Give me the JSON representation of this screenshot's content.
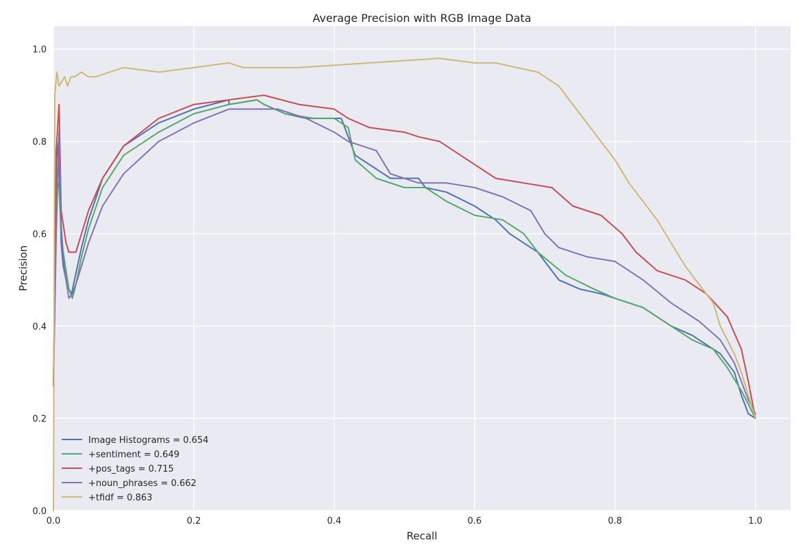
{
  "chart_data": {
    "type": "line",
    "title": "Average Precision with RGB Image Data",
    "xlabel": "Recall",
    "ylabel": "Precision",
    "xlim": [
      0.0,
      1.05
    ],
    "ylim": [
      0.0,
      1.05
    ],
    "xticks": [
      0.0,
      0.2,
      0.4,
      0.6,
      0.8,
      1.0
    ],
    "yticks": [
      0.0,
      0.2,
      0.4,
      0.6,
      0.8,
      1.0
    ],
    "xtick_labels": [
      "0.0",
      "0.2",
      "0.4",
      "0.6",
      "0.8",
      "1.0"
    ],
    "ytick_labels": [
      "0.0",
      "0.2",
      "0.4",
      "0.6",
      "0.8",
      "1.0"
    ],
    "grid": true,
    "legend_position": "bottom-left",
    "background": "#eaeaf2",
    "series": [
      {
        "name": "Image Histograms = 0.654",
        "color": "#4c72b0",
        "x": [
          0.0,
          0.005,
          0.008,
          0.011,
          0.014,
          0.018,
          0.022,
          0.026,
          0.03,
          0.04,
          0.05,
          0.07,
          0.1,
          0.15,
          0.2,
          0.25,
          0.25,
          0.29,
          0.3,
          0.33,
          0.36,
          0.38,
          0.41,
          0.43,
          0.46,
          0.48,
          0.52,
          0.53,
          0.56,
          0.6,
          0.63,
          0.65,
          0.69,
          0.72,
          0.75,
          0.78,
          0.8,
          0.84,
          0.88,
          0.91,
          0.93,
          0.95,
          0.97,
          0.98,
          0.99,
          1.0
        ],
        "y": [
          0.27,
          0.8,
          0.75,
          0.58,
          0.53,
          0.5,
          0.48,
          0.47,
          0.5,
          0.57,
          0.63,
          0.72,
          0.79,
          0.84,
          0.87,
          0.89,
          0.88,
          0.89,
          0.88,
          0.86,
          0.85,
          0.85,
          0.85,
          0.77,
          0.74,
          0.72,
          0.72,
          0.7,
          0.69,
          0.66,
          0.63,
          0.6,
          0.56,
          0.5,
          0.48,
          0.47,
          0.46,
          0.44,
          0.4,
          0.38,
          0.36,
          0.34,
          0.3,
          0.25,
          0.21,
          0.2
        ]
      },
      {
        "name": "+sentiment = 0.649",
        "color": "#55a868",
        "x": [
          0.0,
          0.005,
          0.008,
          0.011,
          0.014,
          0.018,
          0.022,
          0.027,
          0.032,
          0.04,
          0.05,
          0.07,
          0.1,
          0.15,
          0.2,
          0.25,
          0.29,
          0.3,
          0.33,
          0.37,
          0.4,
          0.42,
          0.43,
          0.46,
          0.5,
          0.53,
          0.56,
          0.6,
          0.64,
          0.67,
          0.69,
          0.73,
          0.77,
          0.8,
          0.84,
          0.88,
          0.91,
          0.94,
          0.96,
          0.98,
          1.0
        ],
        "y": [
          0.27,
          0.72,
          0.7,
          0.6,
          0.56,
          0.52,
          0.48,
          0.46,
          0.49,
          0.55,
          0.61,
          0.7,
          0.77,
          0.82,
          0.86,
          0.88,
          0.89,
          0.88,
          0.86,
          0.85,
          0.85,
          0.83,
          0.76,
          0.72,
          0.7,
          0.7,
          0.67,
          0.64,
          0.63,
          0.6,
          0.56,
          0.51,
          0.48,
          0.46,
          0.44,
          0.4,
          0.37,
          0.35,
          0.31,
          0.26,
          0.2
        ]
      },
      {
        "name": "+pos_tags = 0.715",
        "color": "#c44e52",
        "x": [
          0.0,
          0.004,
          0.008,
          0.011,
          0.014,
          0.018,
          0.022,
          0.027,
          0.032,
          0.04,
          0.05,
          0.07,
          0.1,
          0.15,
          0.2,
          0.25,
          0.3,
          0.35,
          0.4,
          0.42,
          0.45,
          0.5,
          0.52,
          0.55,
          0.58,
          0.6,
          0.63,
          0.67,
          0.71,
          0.74,
          0.78,
          0.81,
          0.83,
          0.86,
          0.9,
          0.93,
          0.96,
          0.98,
          0.99,
          1.0
        ],
        "y": [
          0.27,
          0.78,
          0.88,
          0.65,
          0.62,
          0.58,
          0.56,
          0.56,
          0.56,
          0.6,
          0.65,
          0.72,
          0.79,
          0.85,
          0.88,
          0.89,
          0.9,
          0.88,
          0.87,
          0.85,
          0.83,
          0.82,
          0.81,
          0.8,
          0.77,
          0.75,
          0.72,
          0.71,
          0.7,
          0.66,
          0.64,
          0.6,
          0.56,
          0.52,
          0.5,
          0.47,
          0.42,
          0.35,
          0.28,
          0.2
        ]
      },
      {
        "name": "+noun_phrases = 0.662",
        "color": "#8172b2",
        "x": [
          0.0,
          0.004,
          0.008,
          0.011,
          0.014,
          0.018,
          0.022,
          0.027,
          0.034,
          0.04,
          0.05,
          0.07,
          0.1,
          0.15,
          0.2,
          0.25,
          0.28,
          0.32,
          0.36,
          0.4,
          0.42,
          0.44,
          0.46,
          0.48,
          0.52,
          0.56,
          0.6,
          0.64,
          0.68,
          0.7,
          0.72,
          0.76,
          0.8,
          0.84,
          0.88,
          0.92,
          0.95,
          0.97,
          0.99,
          1.0
        ],
        "y": [
          0.27,
          0.6,
          0.82,
          0.62,
          0.55,
          0.5,
          0.46,
          0.47,
          0.5,
          0.53,
          0.58,
          0.66,
          0.73,
          0.8,
          0.84,
          0.87,
          0.87,
          0.87,
          0.85,
          0.82,
          0.8,
          0.79,
          0.78,
          0.73,
          0.71,
          0.71,
          0.7,
          0.68,
          0.65,
          0.6,
          0.57,
          0.55,
          0.54,
          0.5,
          0.45,
          0.41,
          0.37,
          0.32,
          0.24,
          0.21
        ]
      },
      {
        "name": "+tfidf = 0.863",
        "color": "#ccb974",
        "x": [
          0.0,
          0.002,
          0.005,
          0.008,
          0.012,
          0.016,
          0.02,
          0.025,
          0.03,
          0.04,
          0.05,
          0.06,
          0.08,
          0.1,
          0.15,
          0.2,
          0.25,
          0.27,
          0.35,
          0.45,
          0.55,
          0.6,
          0.63,
          0.66,
          0.69,
          0.72,
          0.74,
          0.76,
          0.78,
          0.8,
          0.82,
          0.84,
          0.86,
          0.88,
          0.9,
          0.92,
          0.94,
          0.95,
          0.96,
          0.97,
          0.98,
          0.99,
          1.0
        ],
        "y": [
          0.0,
          0.9,
          0.95,
          0.92,
          0.93,
          0.94,
          0.92,
          0.94,
          0.94,
          0.95,
          0.94,
          0.94,
          0.95,
          0.96,
          0.95,
          0.96,
          0.97,
          0.96,
          0.96,
          0.97,
          0.98,
          0.97,
          0.97,
          0.96,
          0.95,
          0.92,
          0.88,
          0.84,
          0.8,
          0.76,
          0.71,
          0.67,
          0.63,
          0.58,
          0.53,
          0.49,
          0.45,
          0.4,
          0.37,
          0.34,
          0.3,
          0.25,
          0.2
        ]
      }
    ]
  }
}
